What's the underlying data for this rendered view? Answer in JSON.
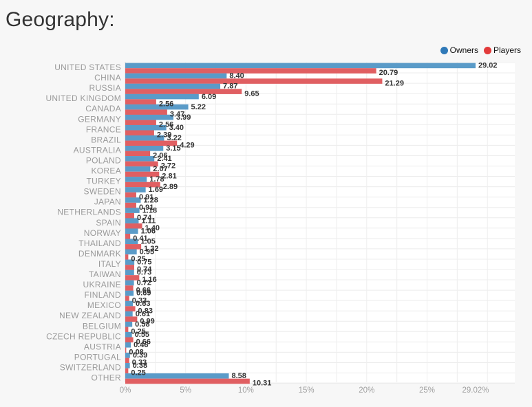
{
  "page": {
    "title": "Geography:"
  },
  "colors": {
    "owners": "#5a9bc8",
    "players": "#e05f62",
    "owners_legend": "#2f79b8",
    "players_legend": "#e23a3a"
  },
  "chart_data": {
    "type": "bar",
    "orientation": "horizontal",
    "categories": [
      "UNITED STATES",
      "CHINA",
      "RUSSIA",
      "UNITED KINGDOM",
      "CANADA",
      "GERMANY",
      "FRANCE",
      "BRAZIL",
      "AUSTRALIA",
      "POLAND",
      "KOREA",
      "TURKEY",
      "SWEDEN",
      "JAPAN",
      "NETHERLANDS",
      "SPAIN",
      "NORWAY",
      "THAILAND",
      "DENMARK",
      "ITALY",
      "TAIWAN",
      "UKRAINE",
      "FINLAND",
      "MEXICO",
      "NEW ZEALAND",
      "BELGIUM",
      "CZECH REPUBLIC",
      "AUSTRIA",
      "PORTUGAL",
      "SWITZERLAND",
      "OTHER"
    ],
    "series": [
      {
        "name": "Owners",
        "values": [
          29.02,
          8.4,
          7.87,
          6.09,
          5.22,
          3.99,
          3.4,
          3.22,
          3.15,
          2.41,
          2.07,
          1.78,
          1.69,
          1.28,
          1.18,
          1.11,
          1.06,
          1.05,
          0.95,
          0.75,
          0.73,
          0.72,
          0.69,
          0.63,
          0.61,
          0.58,
          0.55,
          0.46,
          0.39,
          0.38,
          8.58
        ],
        "labels": [
          "29.02",
          "8.40",
          "7.87",
          "6.09",
          "5.22",
          "3.99",
          "3.40",
          "3.22",
          "3.15",
          "2.41",
          "2.07",
          "1.78",
          "1.69",
          "1.28",
          "1.18",
          "1.11",
          "1.06",
          "1.05",
          "0.95",
          "0.75",
          "0.73",
          "0.72",
          "0.69",
          "0.63",
          "0.61",
          "0.58",
          "0.55",
          "0.46",
          "0.39",
          "0.38",
          "8.58"
        ]
      },
      {
        "name": "Players",
        "values": [
          20.79,
          21.29,
          9.65,
          2.56,
          3.47,
          2.56,
          2.39,
          4.29,
          2.06,
          2.72,
          2.81,
          2.89,
          0.91,
          0.91,
          0.74,
          1.4,
          0.41,
          1.32,
          0.25,
          0.74,
          1.16,
          0.66,
          0.33,
          0.83,
          0.99,
          0.25,
          0.66,
          0.08,
          0.33,
          0.25,
          10.31
        ],
        "labels": [
          "20.79",
          "21.29",
          "9.65",
          "2.56",
          "3.47",
          "2.56",
          "2.39",
          "4.29",
          "2.06",
          "2.72",
          "2.81",
          "2.89",
          "0.91",
          "0.91",
          "0.74",
          "1.40",
          "0.41",
          "1.32",
          "0.25",
          "0.74",
          "1.16",
          "0.66",
          "0.33",
          "0.83",
          "0.99",
          "0.25",
          "0.66",
          "0.08",
          "0.33",
          "0.25",
          "10.31"
        ]
      }
    ],
    "x_ticks": [
      "0%",
      "5%",
      "10%",
      "15%",
      "20%",
      "25%",
      "29.02%"
    ],
    "x_tick_values": [
      0,
      5,
      10,
      15,
      20,
      25,
      29.02
    ],
    "xlim": [
      0,
      32.5
    ],
    "grid": true,
    "legend": "top-right"
  }
}
